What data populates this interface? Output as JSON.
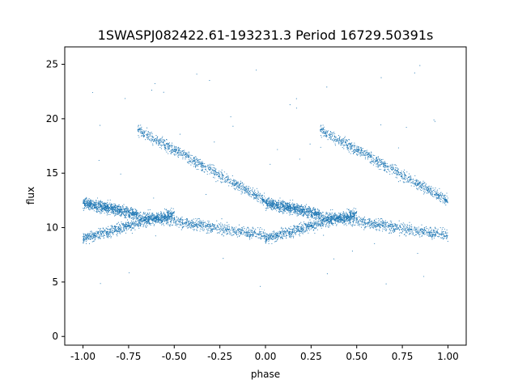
{
  "chart_data": {
    "type": "scatter",
    "title": "1SWASPJ082422.61-193231.3 Period 16729.50391s",
    "xlabel": "phase",
    "ylabel": "flux",
    "xlim": [
      -1.1,
      1.1
    ],
    "ylim": [
      -0.8,
      26.6
    ],
    "xticks": [
      "-1.00",
      "-0.75",
      "-0.50",
      "-0.25",
      "0.00",
      "0.25",
      "0.50",
      "0.75",
      "1.00"
    ],
    "yticks": [
      "0",
      "5",
      "10",
      "15",
      "20",
      "25"
    ],
    "grid": false,
    "marker_color": "#1f77b4",
    "series": [
      {
        "phase_folded_components": [
          {
            "phase_start": 0.0,
            "phase_end": 0.5,
            "flux_start": 9.0,
            "flux_end": 11.3,
            "note": "lower rising branch"
          },
          {
            "phase_start": 0.3,
            "phase_end": 1.0,
            "flux_start": 19.0,
            "flux_end": 12.5,
            "note": "upper declining branch"
          },
          {
            "phase_start": 0.0,
            "phase_end": 0.3,
            "flux_start": 12.3,
            "flux_end": 11.2,
            "note": "mid branch"
          },
          {
            "phase_start": 0.3,
            "phase_end": 1.0,
            "flux_start": 11.1,
            "flux_end": 9.3,
            "note": "lower declining branch"
          }
        ]
      }
    ]
  }
}
